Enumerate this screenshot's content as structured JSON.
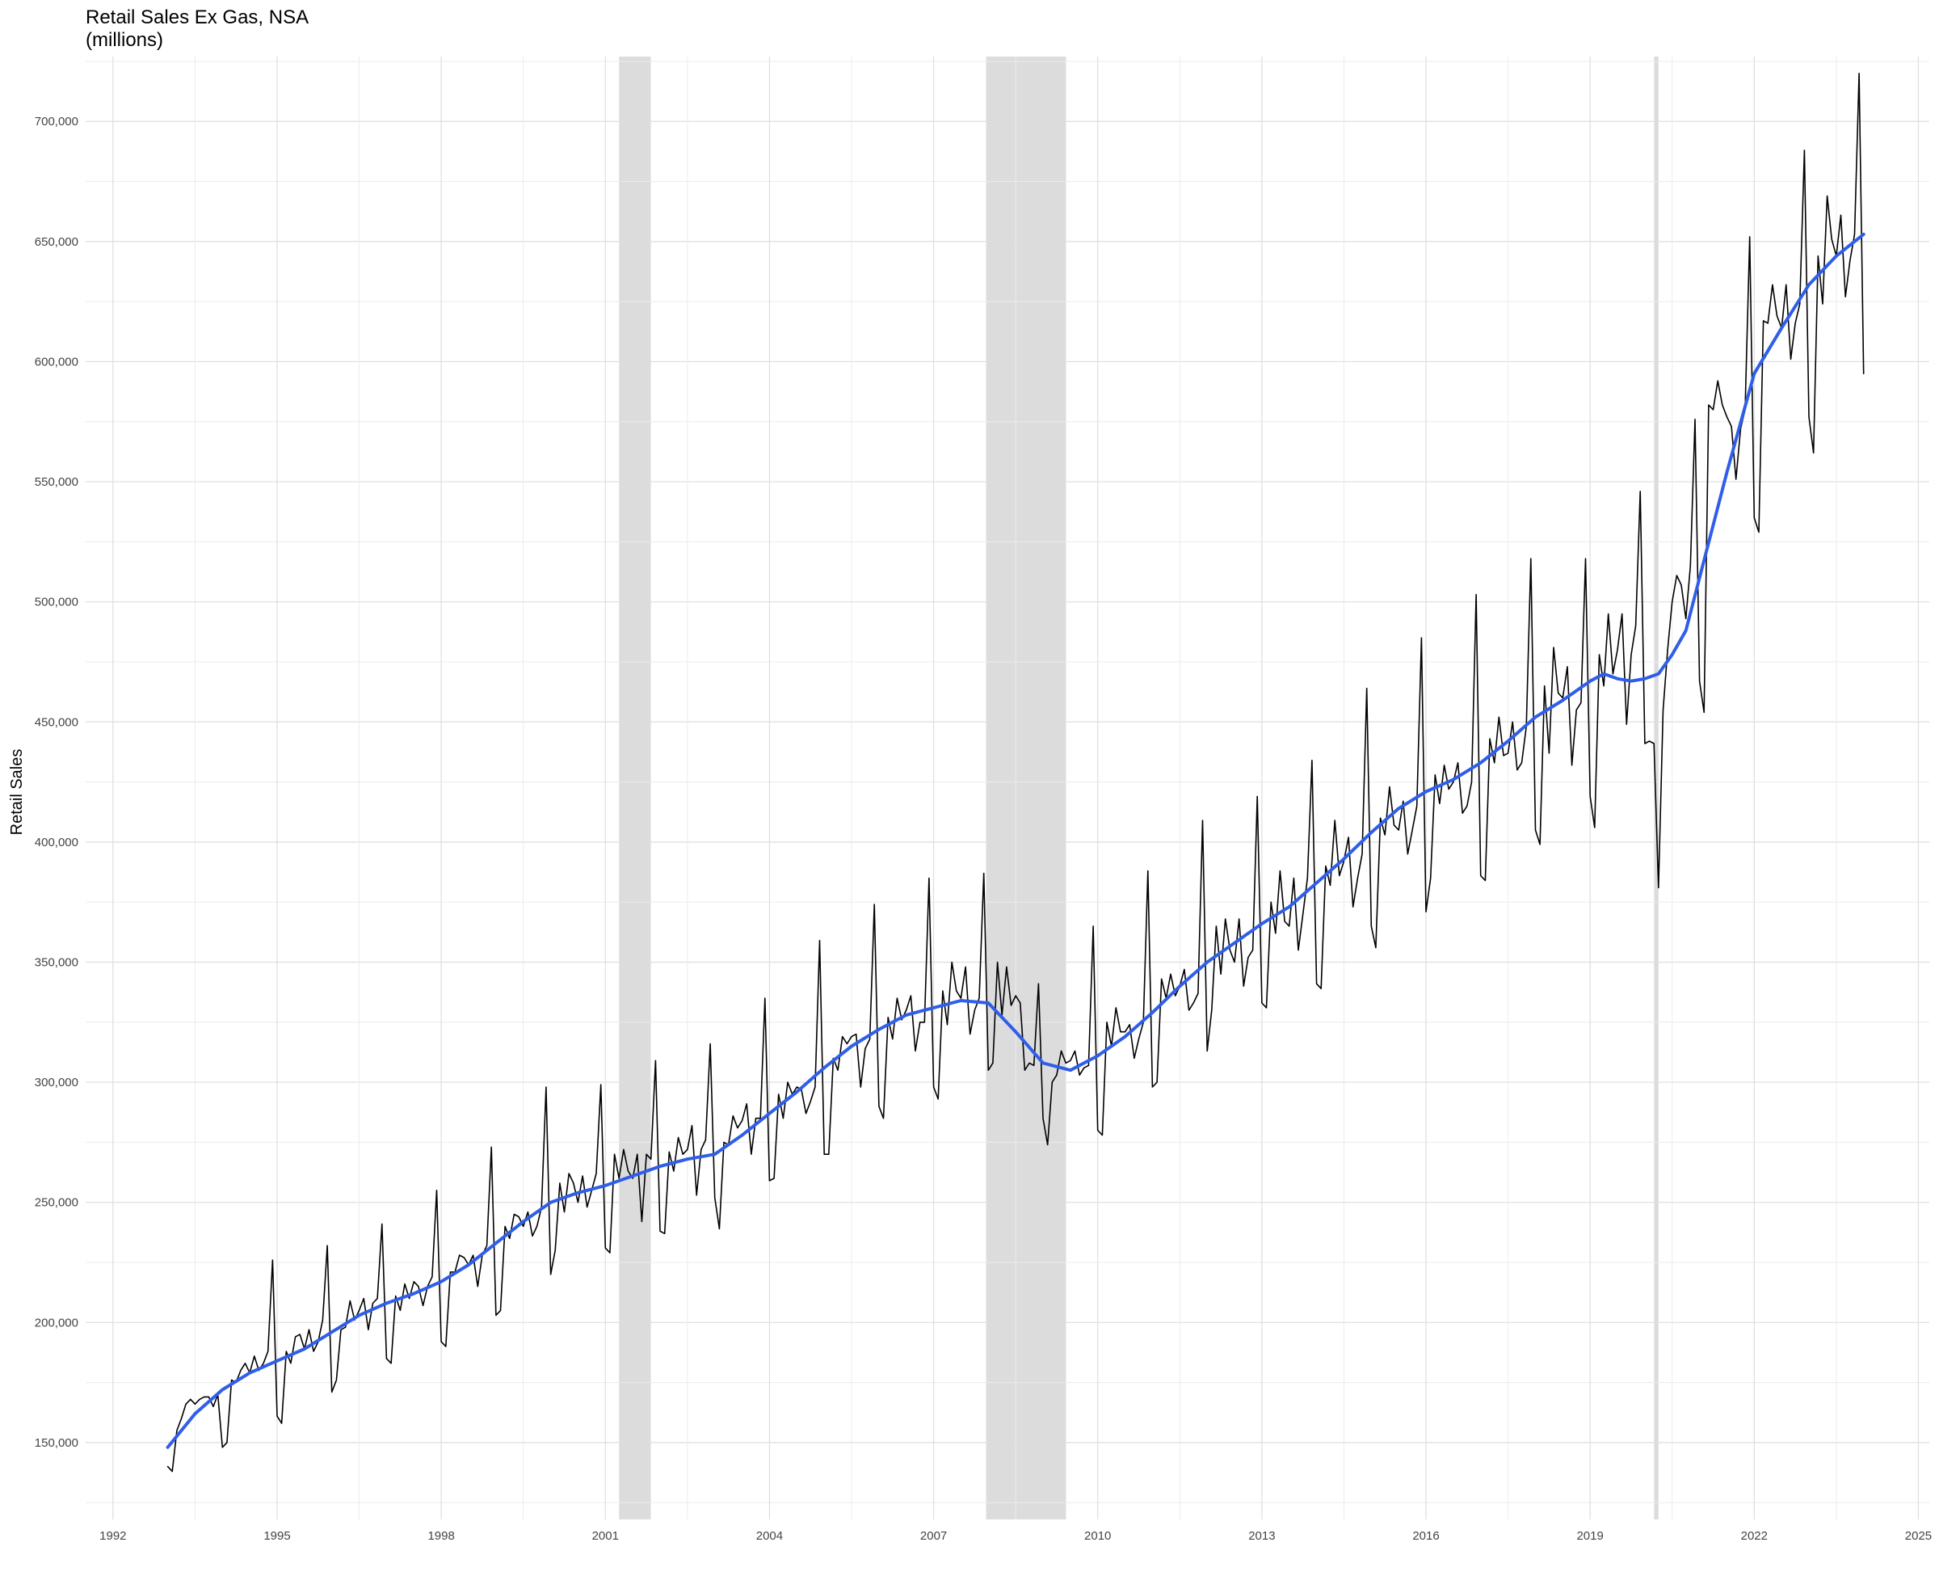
{
  "chart_data": {
    "type": "line",
    "title": "Retail Sales Ex Gas, NSA",
    "subtitle": "(millions)",
    "xlabel": "",
    "ylabel": "Retail Sales",
    "xlim": [
      1991.5,
      2025.2
    ],
    "ylim": [
      118000,
      727000
    ],
    "x_ticks": [
      1992,
      1995,
      1998,
      2001,
      2004,
      2007,
      2010,
      2013,
      2016,
      2019,
      2022,
      2025
    ],
    "y_ticks": [
      150000,
      200000,
      250000,
      300000,
      350000,
      400000,
      450000,
      500000,
      550000,
      600000,
      650000,
      700000
    ],
    "y_tick_labels": [
      "150,000",
      "200,000",
      "250,000",
      "300,000",
      "350,000",
      "400,000",
      "450,000",
      "500,000",
      "550,000",
      "600,000",
      "650,000",
      "700,000"
    ],
    "grid": true,
    "recessions": [
      {
        "start": 2001.25,
        "end": 2001.83
      },
      {
        "start": 2007.96,
        "end": 2009.42
      },
      {
        "start": 2020.17,
        "end": 2020.25
      }
    ],
    "series": [
      {
        "style": "line",
        "color": "#000000",
        "start_year": 1993,
        "start_month": 1,
        "frequency": "monthly",
        "values": [
          140000,
          138000,
          155000,
          160000,
          166000,
          168000,
          166000,
          168000,
          169000,
          169000,
          165000,
          170000,
          148000,
          150000,
          176000,
          175000,
          180000,
          183000,
          179000,
          186000,
          180000,
          183000,
          188000,
          226000,
          161000,
          158000,
          188000,
          183000,
          194000,
          195000,
          189000,
          197000,
          188000,
          192000,
          201000,
          232000,
          171000,
          176000,
          197000,
          198000,
          209000,
          201000,
          205000,
          210000,
          197000,
          208000,
          210000,
          241000,
          185000,
          183000,
          211000,
          205000,
          216000,
          210000,
          217000,
          215000,
          207000,
          215000,
          219000,
          255000,
          192000,
          190000,
          221000,
          221000,
          228000,
          227000,
          224000,
          228000,
          215000,
          228000,
          232000,
          273000,
          203000,
          205000,
          240000,
          235000,
          245000,
          244000,
          240000,
          246000,
          236000,
          240000,
          248000,
          298000,
          220000,
          230000,
          258000,
          246000,
          262000,
          258000,
          250000,
          261000,
          248000,
          255000,
          262000,
          299000,
          231000,
          229000,
          270000,
          260000,
          272000,
          263000,
          260000,
          270000,
          242000,
          270000,
          268000,
          309000,
          238000,
          237000,
          271000,
          263000,
          277000,
          270000,
          272000,
          282000,
          253000,
          272000,
          276000,
          316000,
          252000,
          239000,
          275000,
          274000,
          286000,
          281000,
          284000,
          291000,
          270000,
          285000,
          285000,
          335000,
          259000,
          260000,
          295000,
          285000,
          300000,
          295000,
          298000,
          297000,
          287000,
          292000,
          298000,
          359000,
          270000,
          270000,
          310000,
          305000,
          319000,
          316000,
          319000,
          320000,
          298000,
          314000,
          318000,
          374000,
          290000,
          285000,
          327000,
          318000,
          335000,
          326000,
          330000,
          336000,
          313000,
          325000,
          325000,
          385000,
          298000,
          293000,
          338000,
          324000,
          350000,
          338000,
          335000,
          348000,
          320000,
          330000,
          335000,
          387000,
          305000,
          308000,
          350000,
          328000,
          348000,
          332000,
          336000,
          333000,
          305000,
          308000,
          307000,
          341000,
          285000,
          274000,
          300000,
          303000,
          313000,
          308000,
          309000,
          313000,
          303000,
          306000,
          307000,
          365000,
          280000,
          278000,
          325000,
          315000,
          331000,
          321000,
          321000,
          324000,
          310000,
          318000,
          325000,
          388000,
          298000,
          300000,
          343000,
          335000,
          345000,
          336000,
          340000,
          347000,
          330000,
          333000,
          337000,
          409000,
          313000,
          330000,
          365000,
          345000,
          368000,
          355000,
          350000,
          368000,
          340000,
          352000,
          355000,
          419000,
          333000,
          331000,
          375000,
          362000,
          388000,
          367000,
          365000,
          385000,
          355000,
          370000,
          385000,
          434000,
          341000,
          339000,
          390000,
          382000,
          409000,
          386000,
          392000,
          402000,
          373000,
          385000,
          395000,
          464000,
          365000,
          356000,
          410000,
          403000,
          423000,
          407000,
          405000,
          417000,
          395000,
          405000,
          415000,
          485000,
          371000,
          385000,
          428000,
          416000,
          432000,
          422000,
          425000,
          433000,
          412000,
          415000,
          425000,
          503000,
          386000,
          384000,
          443000,
          433000,
          452000,
          436000,
          437000,
          450000,
          430000,
          433000,
          448000,
          518000,
          405000,
          399000,
          465000,
          437000,
          481000,
          462000,
          460000,
          473000,
          432000,
          455000,
          458000,
          518000,
          419000,
          406000,
          478000,
          465000,
          495000,
          470000,
          480000,
          495000,
          449000,
          478000,
          490000,
          546000,
          441000,
          442000,
          441000,
          381000,
          455000,
          480000,
          500000,
          511000,
          507000,
          493000,
          515000,
          576000,
          467000,
          454000,
          582000,
          580000,
          592000,
          582000,
          577000,
          573000,
          551000,
          572000,
          580000,
          652000,
          535000,
          529000,
          617000,
          616000,
          632000,
          619000,
          614000,
          632000,
          601000,
          616000,
          624000,
          688000,
          577000,
          562000,
          644000,
          624000,
          669000,
          651000,
          644000,
          661000,
          627000,
          642000,
          653000,
          720000,
          595000
        ]
      },
      {
        "style": "smooth",
        "color": "#2f5ee8",
        "x": [
          1993.0,
          1993.5,
          1994.0,
          1994.5,
          1995.0,
          1995.5,
          1996.0,
          1996.5,
          1997.0,
          1997.5,
          1998.0,
          1998.5,
          1999.0,
          1999.5,
          2000.0,
          2000.5,
          2001.0,
          2001.5,
          2002.0,
          2002.5,
          2003.0,
          2003.5,
          2004.0,
          2004.5,
          2005.0,
          2005.5,
          2006.0,
          2006.5,
          2007.0,
          2007.5,
          2008.0,
          2008.5,
          2009.0,
          2009.5,
          2010.0,
          2010.5,
          2011.0,
          2011.5,
          2012.0,
          2012.5,
          2013.0,
          2013.5,
          2014.0,
          2014.5,
          2015.0,
          2015.5,
          2016.0,
          2016.5,
          2017.0,
          2017.5,
          2018.0,
          2018.5,
          2019.0,
          2019.25,
          2019.5,
          2019.75,
          2020.0,
          2020.25,
          2020.5,
          2020.75,
          2021.0,
          2021.5,
          2022.0,
          2022.5,
          2023.0,
          2023.5,
          2024.0
        ],
        "values": [
          148000,
          162000,
          172000,
          179000,
          184000,
          189000,
          196000,
          203000,
          208000,
          212000,
          217000,
          224000,
          233000,
          242000,
          250000,
          254000,
          257000,
          261000,
          265000,
          268000,
          270000,
          278000,
          287000,
          296000,
          306000,
          315000,
          322000,
          328000,
          331000,
          334000,
          333000,
          321000,
          308000,
          305000,
          311000,
          319000,
          329000,
          340000,
          350000,
          358000,
          366000,
          373000,
          383000,
          393000,
          404000,
          414000,
          421000,
          426000,
          433000,
          442000,
          452000,
          459000,
          467000,
          470000,
          468000,
          467000,
          468000,
          470000,
          478000,
          488000,
          510000,
          554000,
          595000,
          614000,
          632000,
          644000,
          653000
        ]
      }
    ]
  }
}
